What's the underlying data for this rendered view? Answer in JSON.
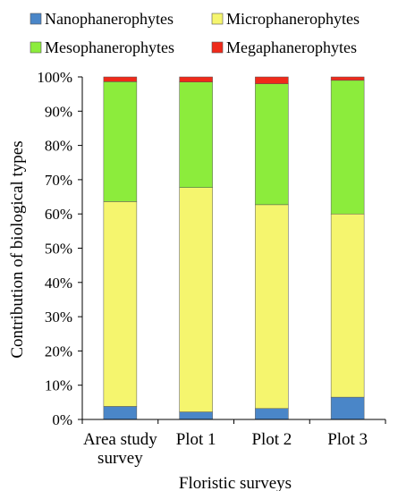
{
  "chart_data": {
    "type": "bar",
    "stacked": true,
    "normalized": true,
    "categories": [
      "Area study survey",
      "Plot 1",
      "Plot 2",
      "Plot 3"
    ],
    "category_lines": [
      [
        "Area study",
        "survey"
      ],
      [
        "Plot 1"
      ],
      [
        "Plot 2"
      ],
      [
        "Plot 3"
      ]
    ],
    "series": [
      {
        "name": "Nanophanerophytes",
        "color": "#4a86c8",
        "values": [
          3.8,
          2.2,
          3.2,
          6.5
        ]
      },
      {
        "name": "Microphanerophytes",
        "color": "#f5f56e",
        "values": [
          59.8,
          65.5,
          59.5,
          53.5
        ]
      },
      {
        "name": "Mesophanerophytes",
        "color": "#8cec3c",
        "values": [
          35.0,
          30.8,
          35.3,
          39.0
        ]
      },
      {
        "name": "Megaphanerophytes",
        "color": "#ef2a1a",
        "values": [
          1.4,
          1.5,
          2.0,
          1.0
        ]
      }
    ],
    "ylim": [
      0,
      100
    ],
    "yticks": [
      "0%",
      "10%",
      "20%",
      "30%",
      "40%",
      "50%",
      "60%",
      "70%",
      "80%",
      "90%",
      "100%"
    ],
    "xlabel": "Floristic surveys",
    "ylabel": "Contribution of biological types",
    "legend": {
      "position": "top",
      "order": [
        0,
        1,
        2,
        3
      ]
    },
    "grid": false
  }
}
